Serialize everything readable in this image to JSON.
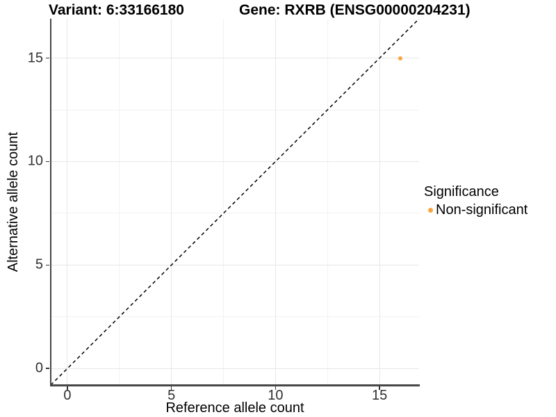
{
  "titles": {
    "variant": "Variant: 6:33166180",
    "gene": "Gene: RXRB (ENSG00000204231)"
  },
  "chart_data": {
    "type": "scatter",
    "title": "Variant: 6:33166180  /  Gene: RXRB (ENSG00000204231)",
    "xlabel": "Reference allele count",
    "ylabel": "Alternative allele count",
    "xlim": [
      -0.8,
      16.9
    ],
    "ylim": [
      -0.8,
      16.9
    ],
    "x_ticks": [
      0,
      5,
      10,
      15
    ],
    "y_ticks": [
      0,
      5,
      10,
      15
    ],
    "x_minor_ticks": [
      2.5,
      7.5,
      12.5
    ],
    "y_minor_ticks": [
      2.5,
      7.5,
      12.5
    ],
    "grid": "major and minor, light gray on white",
    "points": [
      {
        "x": 16,
        "y": 15,
        "series": "Non-significant",
        "color": "#F8A53F"
      }
    ],
    "identity_line": {
      "style": "dashed",
      "color": "#000000",
      "from": [
        -0.8,
        -0.8
      ],
      "to": [
        16.9,
        16.9
      ]
    },
    "legend": {
      "title": "Significance",
      "position": "right",
      "entries": [
        {
          "label": "Non-significant",
          "color": "#F8A53F"
        }
      ]
    }
  },
  "colors": {
    "background": "#ffffff",
    "axis_line": "#464646",
    "tick_label": "#303030",
    "grid_major": "#e7e7e7",
    "grid_minor": "#f2f2f2",
    "point_orange": "#F8A53F"
  }
}
